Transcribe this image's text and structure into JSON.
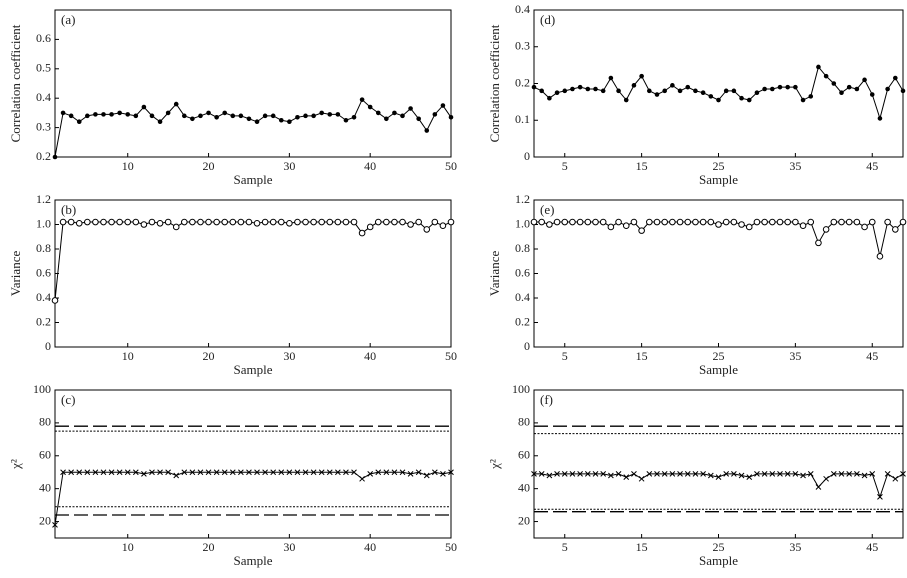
{
  "chart_data": [
    {
      "type": "line",
      "label": "(a)",
      "xlabel": "Sample",
      "ylabel": "Correlation coefficient",
      "marker": "filled-circle",
      "xlim": [
        1,
        50
      ],
      "xticks": [
        10,
        20,
        30,
        40,
        50
      ],
      "ylim": [
        0.2,
        0.7
      ],
      "yticks": [
        0.2,
        0.3,
        0.4,
        0.5,
        0.6
      ],
      "x": [
        1,
        2,
        3,
        4,
        5,
        6,
        7,
        8,
        9,
        10,
        11,
        12,
        13,
        14,
        15,
        16,
        17,
        18,
        19,
        20,
        21,
        22,
        23,
        24,
        25,
        26,
        27,
        28,
        29,
        30,
        31,
        32,
        33,
        34,
        35,
        36,
        37,
        38,
        39,
        40,
        41,
        42,
        43,
        44,
        45,
        46,
        47,
        48,
        49,
        50
      ],
      "series": [
        {
          "color": "#000000",
          "values": [
            0.2,
            0.35,
            0.34,
            0.32,
            0.34,
            0.345,
            0.345,
            0.345,
            0.35,
            0.345,
            0.34,
            0.37,
            0.34,
            0.32,
            0.35,
            0.38,
            0.34,
            0.33,
            0.34,
            0.35,
            0.335,
            0.35,
            0.34,
            0.34,
            0.33,
            0.32,
            0.34,
            0.34,
            0.325,
            0.32,
            0.335,
            0.34,
            0.34,
            0.35,
            0.345,
            0.345,
            0.325,
            0.335,
            0.395,
            0.37,
            0.35,
            0.33,
            0.35,
            0.34,
            0.365,
            0.33,
            0.29,
            0.345,
            0.375,
            0.335
          ]
        }
      ]
    },
    {
      "type": "line",
      "label": "(d)",
      "xlabel": "Sample",
      "ylabel": "Correlation coefficient",
      "marker": "filled-circle",
      "xlim": [
        1,
        49
      ],
      "xticks": [
        5,
        15,
        25,
        35,
        45
      ],
      "ylim": [
        0,
        0.4
      ],
      "yticks": [
        0,
        0.1,
        0.2,
        0.3,
        0.4
      ],
      "x": [
        1,
        2,
        3,
        4,
        5,
        6,
        7,
        8,
        9,
        10,
        11,
        12,
        13,
        14,
        15,
        16,
        17,
        18,
        19,
        20,
        21,
        22,
        23,
        24,
        25,
        26,
        27,
        28,
        29,
        30,
        31,
        32,
        33,
        34,
        35,
        36,
        37,
        38,
        39,
        40,
        41,
        42,
        43,
        44,
        45,
        46,
        47,
        48,
        49
      ],
      "series": [
        {
          "color": "#000000",
          "values": [
            0.19,
            0.18,
            0.16,
            0.175,
            0.18,
            0.185,
            0.19,
            0.185,
            0.185,
            0.18,
            0.215,
            0.18,
            0.155,
            0.195,
            0.22,
            0.18,
            0.17,
            0.18,
            0.195,
            0.18,
            0.19,
            0.18,
            0.175,
            0.165,
            0.155,
            0.18,
            0.18,
            0.16,
            0.155,
            0.175,
            0.185,
            0.185,
            0.19,
            0.19,
            0.19,
            0.155,
            0.165,
            0.245,
            0.22,
            0.2,
            0.175,
            0.19,
            0.185,
            0.21,
            0.17,
            0.105,
            0.185,
            0.215,
            0.18
          ]
        }
      ]
    },
    {
      "type": "line",
      "label": "(b)",
      "xlabel": "Sample",
      "ylabel": "Variance",
      "marker": "open-circle",
      "xlim": [
        1,
        50
      ],
      "xticks": [
        10,
        20,
        30,
        40,
        50
      ],
      "ylim": [
        0,
        1.2
      ],
      "yticks": [
        0,
        0.2,
        0.4,
        0.6,
        0.8,
        {
          "value": 1,
          "label": "1.0"
        },
        1.2
      ],
      "x": [
        1,
        2,
        3,
        4,
        5,
        6,
        7,
        8,
        9,
        10,
        11,
        12,
        13,
        14,
        15,
        16,
        17,
        18,
        19,
        20,
        21,
        22,
        23,
        24,
        25,
        26,
        27,
        28,
        29,
        30,
        31,
        32,
        33,
        34,
        35,
        36,
        37,
        38,
        39,
        40,
        41,
        42,
        43,
        44,
        45,
        46,
        47,
        48,
        49,
        50
      ],
      "series": [
        {
          "color": "#000000",
          "values": [
            0.38,
            1.02,
            1.02,
            1.01,
            1.02,
            1.02,
            1.02,
            1.02,
            1.02,
            1.02,
            1.02,
            1.0,
            1.02,
            1.01,
            1.02,
            0.98,
            1.02,
            1.02,
            1.02,
            1.02,
            1.02,
            1.02,
            1.02,
            1.02,
            1.02,
            1.01,
            1.02,
            1.02,
            1.02,
            1.01,
            1.02,
            1.02,
            1.02,
            1.02,
            1.02,
            1.02,
            1.02,
            1.02,
            0.93,
            0.98,
            1.02,
            1.02,
            1.02,
            1.02,
            1.0,
            1.02,
            0.96,
            1.02,
            0.99,
            1.02
          ]
        }
      ]
    },
    {
      "type": "line",
      "label": "(e)",
      "xlabel": "Sample",
      "ylabel": "Variance",
      "marker": "open-circle",
      "xlim": [
        1,
        49
      ],
      "xticks": [
        5,
        15,
        25,
        35,
        45
      ],
      "ylim": [
        0,
        1.2
      ],
      "yticks": [
        0,
        0.2,
        0.4,
        0.6,
        0.8,
        {
          "value": 1,
          "label": "1.0"
        },
        1.2
      ],
      "x": [
        1,
        2,
        3,
        4,
        5,
        6,
        7,
        8,
        9,
        10,
        11,
        12,
        13,
        14,
        15,
        16,
        17,
        18,
        19,
        20,
        21,
        22,
        23,
        24,
        25,
        26,
        27,
        28,
        29,
        30,
        31,
        32,
        33,
        34,
        35,
        36,
        37,
        38,
        39,
        40,
        41,
        42,
        43,
        44,
        45,
        46,
        47,
        48,
        49
      ],
      "series": [
        {
          "color": "#000000",
          "values": [
            1.02,
            1.02,
            1.0,
            1.02,
            1.02,
            1.02,
            1.02,
            1.02,
            1.02,
            1.02,
            0.98,
            1.02,
            0.99,
            1.02,
            0.95,
            1.02,
            1.02,
            1.02,
            1.02,
            1.02,
            1.02,
            1.02,
            1.02,
            1.02,
            1.0,
            1.02,
            1.02,
            1.0,
            0.98,
            1.02,
            1.02,
            1.02,
            1.02,
            1.02,
            1.02,
            0.99,
            1.02,
            0.85,
            0.96,
            1.02,
            1.02,
            1.02,
            1.02,
            0.98,
            1.02,
            0.74,
            1.02,
            0.96,
            1.02
          ]
        }
      ]
    },
    {
      "type": "line",
      "label": "(c)",
      "xlabel": "Sample",
      "ylabel": "χ²",
      "marker": "cross",
      "xlim": [
        1,
        50
      ],
      "xticks": [
        10,
        20,
        30,
        40,
        50
      ],
      "ylim": [
        10,
        100
      ],
      "yticks": [
        20,
        40,
        60,
        80,
        100
      ],
      "reference_lines": [
        {
          "value": 78,
          "style": "dashed"
        },
        {
          "value": 75,
          "style": "dotted"
        },
        {
          "value": 29,
          "style": "dotted"
        },
        {
          "value": 24,
          "style": "dashed"
        }
      ],
      "x": [
        1,
        2,
        3,
        4,
        5,
        6,
        7,
        8,
        9,
        10,
        11,
        12,
        13,
        14,
        15,
        16,
        17,
        18,
        19,
        20,
        21,
        22,
        23,
        24,
        25,
        26,
        27,
        28,
        29,
        30,
        31,
        32,
        33,
        34,
        35,
        36,
        37,
        38,
        39,
        40,
        41,
        42,
        43,
        44,
        45,
        46,
        47,
        48,
        49,
        50
      ],
      "series": [
        {
          "color": "#000000",
          "values": [
            18,
            50,
            50,
            50,
            50,
            50,
            50,
            50,
            50,
            50,
            50,
            49,
            50,
            50,
            50,
            48,
            50,
            50,
            50,
            50,
            50,
            50,
            50,
            50,
            50,
            50,
            50,
            50,
            50,
            50,
            50,
            50,
            50,
            50,
            50,
            50,
            50,
            50,
            46,
            49,
            50,
            50,
            50,
            50,
            49,
            50,
            48,
            50,
            49,
            50
          ]
        }
      ]
    },
    {
      "type": "line",
      "label": "(f)",
      "xlabel": "Sample",
      "ylabel": "χ²",
      "marker": "cross",
      "xlim": [
        1,
        49
      ],
      "xticks": [
        5,
        15,
        25,
        35,
        45
      ],
      "ylim": [
        10,
        100
      ],
      "yticks": [
        20,
        40,
        60,
        80,
        100
      ],
      "reference_lines": [
        {
          "value": 78,
          "style": "dashed"
        },
        {
          "value": 73.5,
          "style": "dotted"
        },
        {
          "value": 27.5,
          "style": "dotted"
        },
        {
          "value": 26,
          "style": "dashed"
        }
      ],
      "x": [
        1,
        2,
        3,
        4,
        5,
        6,
        7,
        8,
        9,
        10,
        11,
        12,
        13,
        14,
        15,
        16,
        17,
        18,
        19,
        20,
        21,
        22,
        23,
        24,
        25,
        26,
        27,
        28,
        29,
        30,
        31,
        32,
        33,
        34,
        35,
        36,
        37,
        38,
        39,
        40,
        41,
        42,
        43,
        44,
        45,
        46,
        47,
        48,
        49
      ],
      "series": [
        {
          "color": "#000000",
          "values": [
            49,
            49,
            48,
            49,
            49,
            49,
            49,
            49,
            49,
            49,
            48,
            49,
            47,
            49,
            46,
            49,
            49,
            49,
            49,
            49,
            49,
            49,
            49,
            48,
            47,
            49,
            49,
            48,
            47,
            49,
            49,
            49,
            49,
            49,
            49,
            48,
            49,
            41,
            46,
            49,
            49,
            49,
            49,
            48,
            49,
            35,
            49,
            46,
            49
          ]
        }
      ]
    }
  ]
}
